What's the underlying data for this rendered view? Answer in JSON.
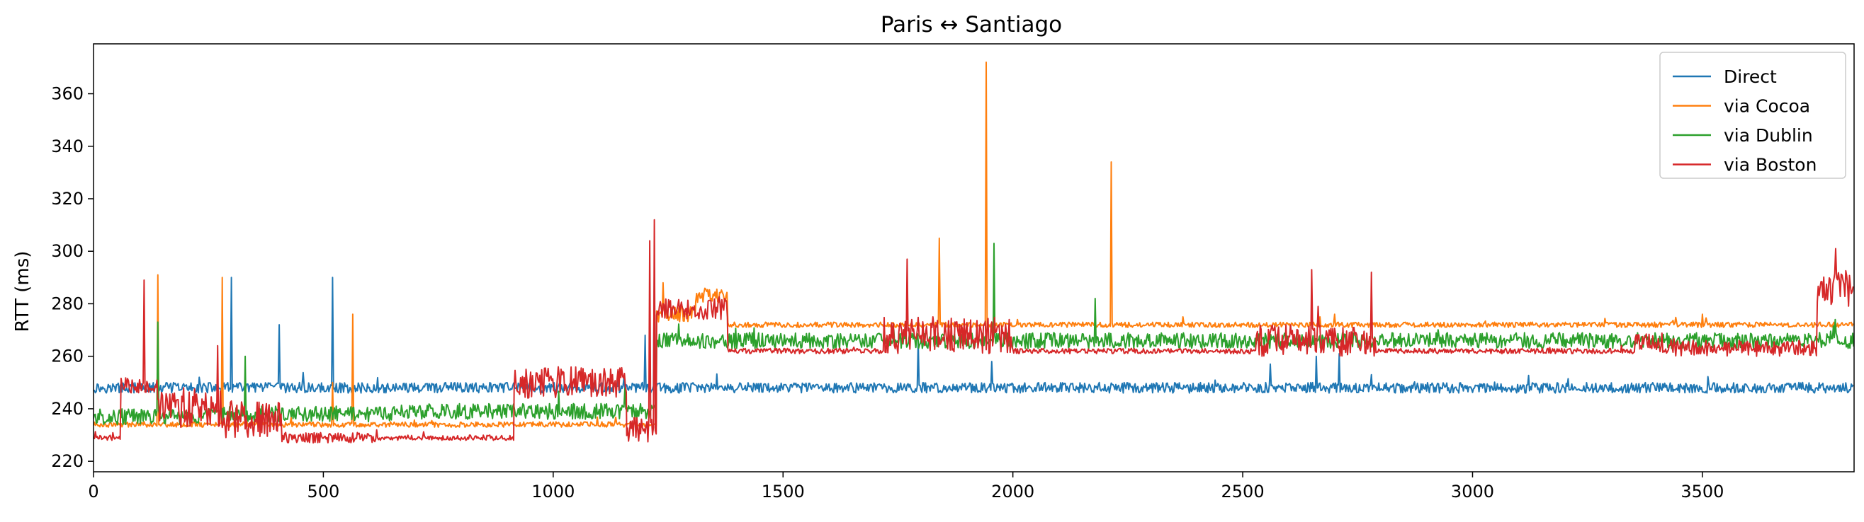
{
  "chart_data": {
    "type": "line",
    "title": "Paris ↔ Santiago",
    "xlabel": "",
    "ylabel": "RTT (ms)",
    "xlim": [
      0,
      3830
    ],
    "ylim": [
      216,
      379
    ],
    "xticks": [
      0,
      500,
      1000,
      1500,
      2000,
      2500,
      3000,
      3500
    ],
    "yticks": [
      220,
      240,
      260,
      280,
      300,
      320,
      340,
      360
    ],
    "grid": false,
    "legend_position": "top-right",
    "series": [
      {
        "name": "Direct",
        "color": "#1f77b4",
        "segments": [
          {
            "x": [
              0,
              1220
            ],
            "base": 248,
            "noise": 2
          },
          {
            "x": [
              1220,
              3830
            ],
            "base": 248,
            "noise": 2
          }
        ],
        "spikes": [
          [
            230,
            252
          ],
          [
            300,
            290
          ],
          [
            405,
            272
          ],
          [
            520,
            290
          ],
          [
            1200,
            268
          ],
          [
            1220,
            294
          ],
          [
            1795,
            266
          ],
          [
            1955,
            258
          ],
          [
            2560,
            257
          ],
          [
            2660,
            260
          ],
          [
            2710,
            261
          ],
          [
            2780,
            253
          ]
        ]
      },
      {
        "name": "via Cocoa",
        "color": "#ff7f0e",
        "segments": [
          {
            "x": [
              0,
              1225
            ],
            "base": 234,
            "noise": 1
          },
          {
            "x": [
              1225,
              1310
            ],
            "base": 276,
            "noise": 3
          },
          {
            "x": [
              1310,
              1380
            ],
            "base": 283,
            "noise": 3
          },
          {
            "x": [
              1380,
              3830
            ],
            "base": 272,
            "noise": 1
          }
        ],
        "spikes": [
          [
            140,
            291
          ],
          [
            280,
            290
          ],
          [
            520,
            250
          ],
          [
            565,
            276
          ],
          [
            1240,
            288
          ],
          [
            1840,
            305
          ],
          [
            1942,
            372
          ],
          [
            2010,
            274
          ],
          [
            2215,
            334
          ],
          [
            2370,
            275
          ],
          [
            2700,
            276
          ],
          [
            3500,
            276
          ]
        ]
      },
      {
        "name": "via Dublin",
        "color": "#2ca02c",
        "segments": [
          {
            "x": [
              0,
              280
            ],
            "base": 237,
            "noise": 3
          },
          {
            "x": [
              280,
              660
            ],
            "base": 238,
            "noise": 3
          },
          {
            "x": [
              660,
              1225
            ],
            "base": 239,
            "noise": 3
          },
          {
            "x": [
              1225,
              3830
            ],
            "base": 266,
            "noise": 3
          }
        ],
        "spikes": [
          [
            140,
            273
          ],
          [
            330,
            260
          ],
          [
            1960,
            303
          ],
          [
            2180,
            282
          ],
          [
            3790,
            274
          ]
        ]
      },
      {
        "name": "via Boston",
        "color": "#d62728",
        "segments": [
          {
            "x": [
              0,
              60
            ],
            "base": 229,
            "noise": 1
          },
          {
            "x": [
              60,
              140
            ],
            "base": 249,
            "noise": 3
          },
          {
            "x": [
              140,
              280
            ],
            "base": 240,
            "noise": 8
          },
          {
            "x": [
              280,
              410
            ],
            "base": 236,
            "noise": 7
          },
          {
            "x": [
              410,
              620
            ],
            "base": 229,
            "noise": 2
          },
          {
            "x": [
              620,
              915
            ],
            "base": 229,
            "noise": 1
          },
          {
            "x": [
              915,
              1160
            ],
            "base": 250,
            "noise": 6
          },
          {
            "x": [
              1160,
              1225
            ],
            "base": 232,
            "noise": 5
          },
          {
            "x": [
              1225,
              1380
            ],
            "base": 278,
            "noise": 4
          },
          {
            "x": [
              1380,
              1720
            ],
            "base": 262,
            "noise": 1
          },
          {
            "x": [
              1720,
              2000
            ],
            "base": 268,
            "noise": 7
          },
          {
            "x": [
              2000,
              2530
            ],
            "base": 262,
            "noise": 1
          },
          {
            "x": [
              2530,
              2790
            ],
            "base": 266,
            "noise": 6
          },
          {
            "x": [
              2790,
              3350
            ],
            "base": 262,
            "noise": 1
          },
          {
            "x": [
              3350,
              3440
            ],
            "base": 265,
            "noise": 4
          },
          {
            "x": [
              3440,
              3750
            ],
            "base": 263,
            "noise": 3
          },
          {
            "x": [
              3750,
              3830
            ],
            "base": 285,
            "noise": 8
          }
        ],
        "spikes": [
          [
            110,
            289
          ],
          [
            270,
            264
          ],
          [
            1210,
            304
          ],
          [
            1220,
            312
          ],
          [
            1770,
            297
          ],
          [
            2650,
            293
          ],
          [
            2780,
            292
          ],
          [
            3790,
            301
          ]
        ]
      }
    ]
  }
}
